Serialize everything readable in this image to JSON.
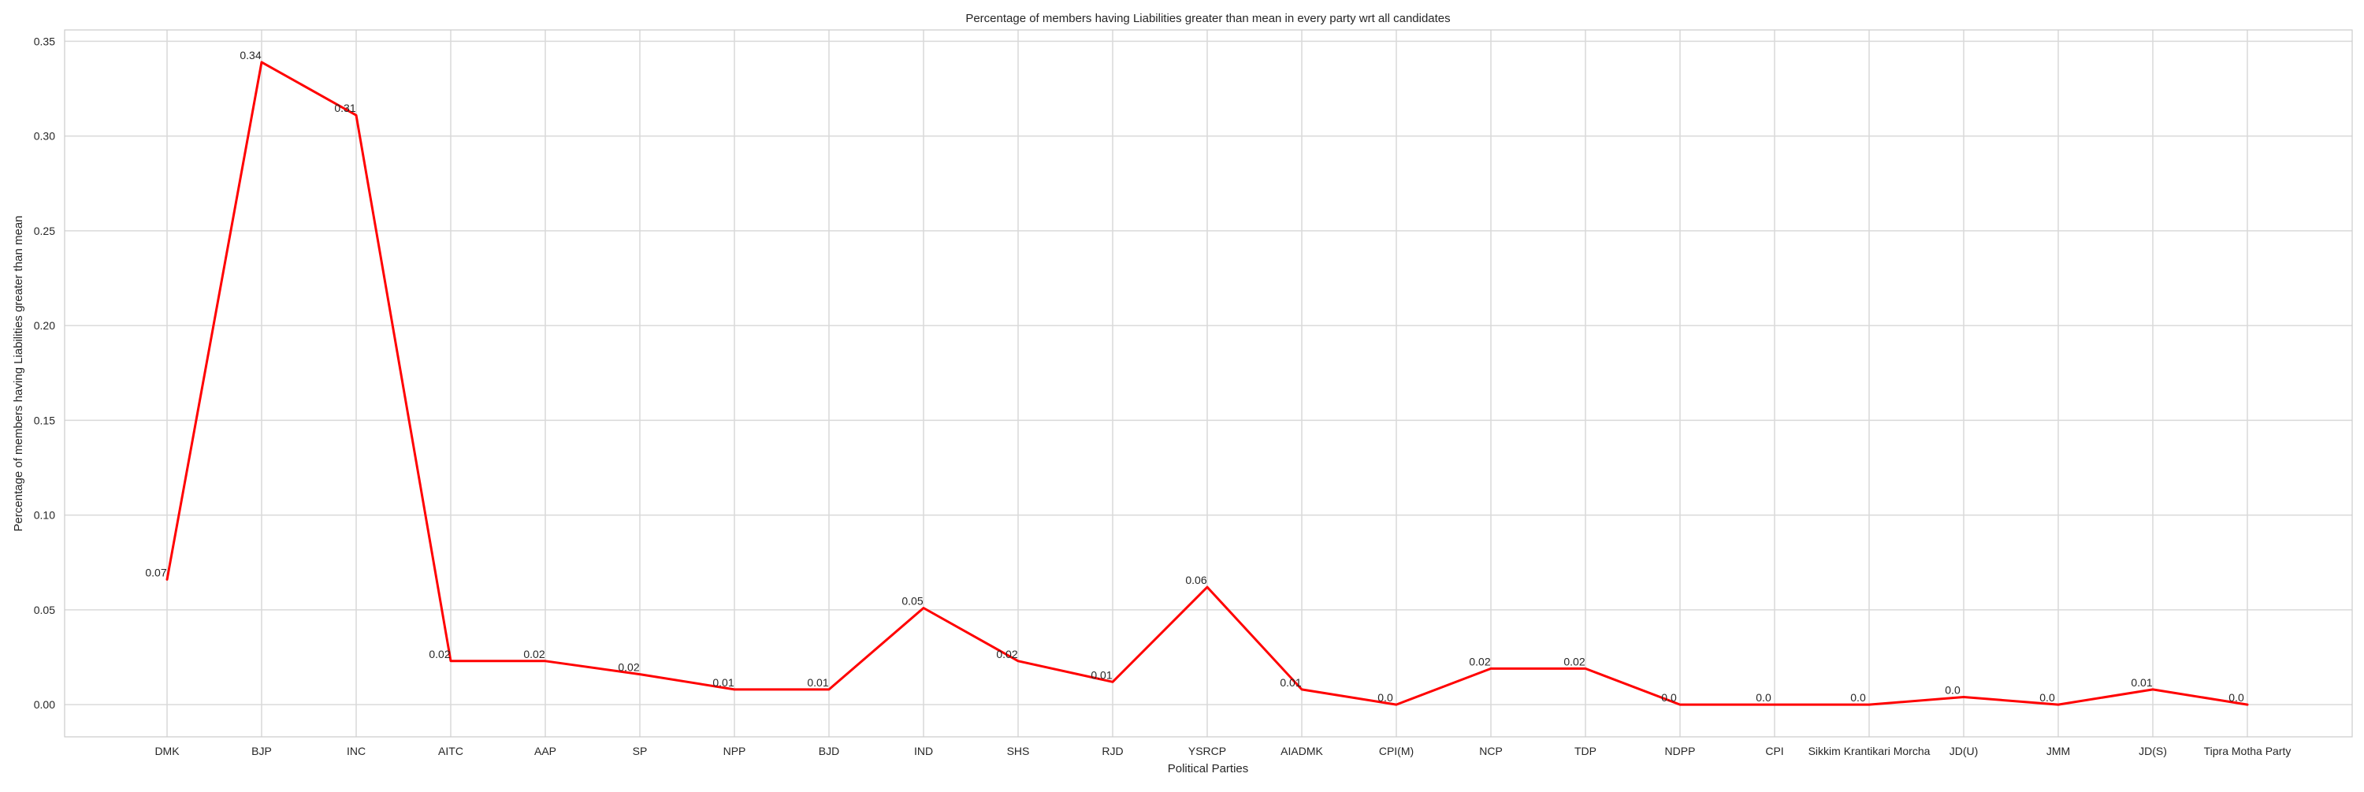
{
  "chart_data": {
    "type": "line",
    "title": "Percentage of members having Liabilities greater than mean in every party wrt all candidates",
    "xlabel": "Political Parties",
    "ylabel": "Percentage of members having Liabilities greater than mean",
    "categories": [
      "DMK",
      "BJP",
      "INC",
      "AITC",
      "AAP",
      "SP",
      "NPP",
      "BJD",
      "IND",
      "SHS",
      "RJD",
      "YSRCP",
      "AIADMK",
      "CPI(M)",
      "NCP",
      "TDP",
      "NDPP",
      "CPI",
      "Sikkim Krantikari Morcha",
      "JD(U)",
      "JMM",
      "JD(S)",
      "Tipra Motha Party"
    ],
    "series": [
      {
        "values": [
          0.066,
          0.339,
          0.311,
          0.023,
          0.023,
          0.016,
          0.008,
          0.008,
          0.051,
          0.023,
          0.012,
          0.062,
          0.008,
          0.0,
          0.019,
          0.019,
          0.0,
          0.0,
          0.0,
          0.004,
          0.0,
          0.008,
          0.0
        ],
        "labels": [
          "0.07",
          "0.34",
          "0.31",
          "0.02",
          "0.02",
          "0.02",
          "0.01",
          "0.01",
          "0.05",
          "0.02",
          "0.01",
          "0.06",
          "0.01",
          "0.0",
          "0.02",
          "0.02",
          "0.0",
          "0.0",
          "0.0",
          "0.0",
          "0.0",
          "0.01",
          "0.0"
        ],
        "color": "#ff0000"
      }
    ],
    "yticks": [
      0.0,
      0.05,
      0.1,
      0.15,
      0.2,
      0.25,
      0.3,
      0.35
    ],
    "ytick_labels": [
      "0.00",
      "0.05",
      "0.10",
      "0.15",
      "0.20",
      "0.25",
      "0.30",
      "0.35"
    ],
    "ylim": [
      -0.017,
      0.356
    ],
    "grid": true,
    "colors": {
      "line": "#ff0000",
      "grid": "#d9d9d9",
      "spine": "#cccccc",
      "text": "#262626"
    }
  }
}
